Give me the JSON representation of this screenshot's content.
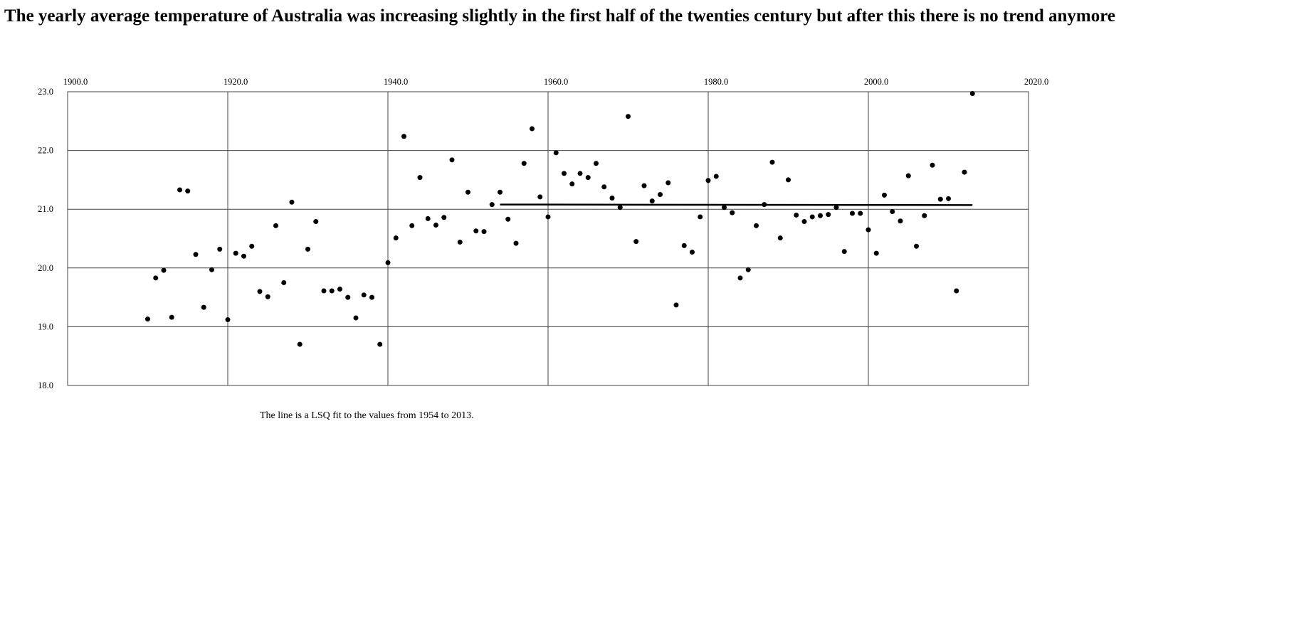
{
  "chart_data": {
    "type": "scatter",
    "title": "The yearly average temperature of Australia was increasing slightly in the first half of the twenties century but after this there is no trend anymore",
    "note": "The line is a LSQ fit to the values from 1954 to 2013.",
    "xlim": [
      1900,
      2020
    ],
    "xticks": [
      {
        "value": 1900,
        "label": "1900.0"
      },
      {
        "value": 1920,
        "label": "1920.0"
      },
      {
        "value": 1940,
        "label": "1940.0"
      },
      {
        "value": 1960,
        "label": "1960.0"
      },
      {
        "value": 1980,
        "label": "1980.0"
      },
      {
        "value": 2000,
        "label": "2000.0"
      },
      {
        "value": 2020,
        "label": "2020.0"
      }
    ],
    "ylim": [
      18,
      23
    ],
    "yticks": [
      {
        "value": 18,
        "label": "18.0"
      },
      {
        "value": 19,
        "label": "19.0"
      },
      {
        "value": 20,
        "label": "20.0"
      },
      {
        "value": 21,
        "label": "21.0"
      },
      {
        "value": 22,
        "label": "22.0"
      },
      {
        "value": 23,
        "label": "23.0"
      }
    ],
    "grid": true,
    "series": [
      {
        "color": "#000000",
        "mode": "markers",
        "x": [
          1910,
          1911,
          1912,
          1913,
          1914,
          1915,
          1916,
          1917,
          1918,
          1919,
          1920,
          1921,
          1922,
          1923,
          1924,
          1925,
          1926,
          1927,
          1928,
          1929,
          1930,
          1931,
          1932,
          1933,
          1934,
          1935,
          1936,
          1937,
          1938,
          1939,
          1940,
          1941,
          1942,
          1943,
          1944,
          1945,
          1946,
          1947,
          1948,
          1949,
          1950,
          1951,
          1952,
          1953,
          1954,
          1955,
          1956,
          1957,
          1958,
          1959,
          1960,
          1961,
          1962,
          1963,
          1964,
          1965,
          1966,
          1967,
          1968,
          1969,
          1970,
          1971,
          1972,
          1973,
          1974,
          1975,
          1976,
          1977,
          1978,
          1979,
          1980,
          1981,
          1982,
          1983,
          1984,
          1985,
          1986,
          1987,
          1988,
          1989,
          1990,
          1991,
          1992,
          1993,
          1994,
          1995,
          1996,
          1997,
          1998,
          1999,
          2000,
          2001,
          2002,
          2003,
          2004,
          2005,
          2006,
          2007,
          2008,
          2009,
          2010,
          2011,
          2012,
          2013
        ],
        "values": [
          19.13,
          19.83,
          19.96,
          19.16,
          21.33,
          21.31,
          20.23,
          19.33,
          19.97,
          20.32,
          19.12,
          20.25,
          20.2,
          20.37,
          19.6,
          19.51,
          20.72,
          19.75,
          21.12,
          18.7,
          20.32,
          20.79,
          19.61,
          19.61,
          19.64,
          19.5,
          19.15,
          19.54,
          19.5,
          18.7,
          20.09,
          20.51,
          22.24,
          20.72,
          21.54,
          20.84,
          20.73,
          20.86,
          21.84,
          20.44,
          21.29,
          20.63,
          20.62,
          21.08,
          21.29,
          20.83,
          20.42,
          21.78,
          22.37,
          21.21,
          20.87,
          21.96,
          21.61,
          21.43,
          21.61,
          21.54,
          21.78,
          21.38,
          21.19,
          21.03,
          22.58,
          20.45,
          21.4,
          21.14,
          21.25,
          21.45,
          19.37,
          20.38,
          20.27,
          20.87,
          21.49,
          21.56,
          21.03,
          20.94,
          19.83,
          19.97,
          20.72,
          21.08,
          21.8,
          20.51,
          21.5,
          20.9,
          20.79,
          20.87,
          20.89,
          20.91,
          21.03,
          20.28,
          20.93,
          20.93,
          20.65,
          20.25,
          21.24,
          20.96,
          20.8,
          21.57,
          20.37,
          20.89,
          21.75,
          21.17,
          21.18,
          19.61,
          21.63,
          22.97
        ]
      },
      {
        "color": "#000000",
        "mode": "line",
        "x": [
          1954,
          2013
        ],
        "values": [
          21.08,
          21.07
        ]
      }
    ]
  }
}
